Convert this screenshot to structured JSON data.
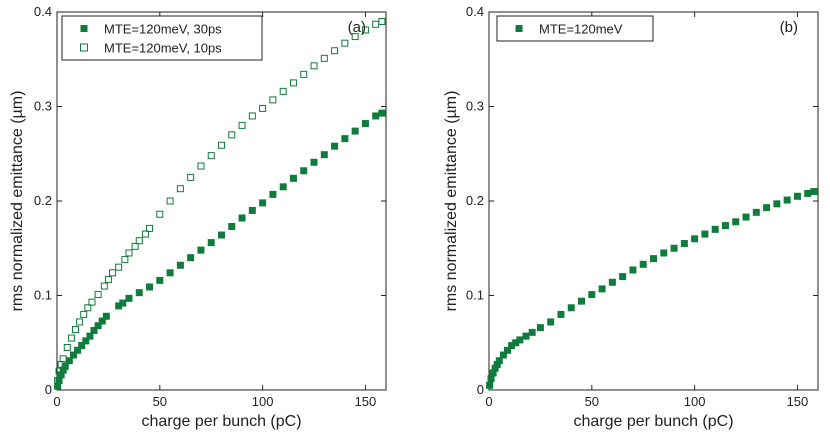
{
  "marker_color": "#0f7b3c",
  "chart_data": [
    {
      "type": "scatter",
      "panel_label": "(a)",
      "xlabel": "charge per bunch (pC)",
      "ylabel": "rms normalized emittance (µm)",
      "xlim": [
        0,
        160
      ],
      "ylim": [
        0,
        0.4
      ],
      "xticks": [
        0,
        50,
        100,
        150
      ],
      "yticks": [
        0,
        0.1,
        0.2,
        0.3,
        0.4
      ],
      "xtick_labels": [
        "0",
        "50",
        "100",
        "150"
      ],
      "ytick_labels": [
        "0",
        "0.1",
        "0.2",
        "0.3",
        "0.4"
      ],
      "legend_position": "top-left",
      "series": [
        {
          "name": "MTE=120meV, 30ps",
          "marker": "filled-square",
          "x": [
            0.3,
            1,
            2,
            3,
            4,
            6,
            8,
            10,
            12,
            14,
            16,
            18,
            20,
            22,
            24,
            30,
            32,
            35,
            40,
            45,
            50,
            55,
            60,
            65,
            70,
            75,
            80,
            85,
            90,
            95,
            100,
            105,
            110,
            115,
            120,
            125,
            130,
            135,
            140,
            145,
            150,
            155,
            158
          ],
          "y": [
            0.004,
            0.01,
            0.016,
            0.021,
            0.025,
            0.031,
            0.037,
            0.042,
            0.047,
            0.052,
            0.057,
            0.063,
            0.068,
            0.073,
            0.078,
            0.089,
            0.092,
            0.097,
            0.103,
            0.109,
            0.116,
            0.124,
            0.132,
            0.14,
            0.148,
            0.156,
            0.164,
            0.173,
            0.182,
            0.19,
            0.198,
            0.207,
            0.215,
            0.224,
            0.232,
            0.241,
            0.249,
            0.258,
            0.266,
            0.274,
            0.282,
            0.29,
            0.293
          ]
        },
        {
          "name": "MTE=120meV, 10ps",
          "marker": "open-square",
          "x": [
            0.3,
            1,
            2,
            3,
            5,
            7,
            9,
            11,
            13,
            15,
            17,
            20,
            23,
            25,
            27,
            30,
            33,
            35,
            38,
            40,
            43,
            45,
            50,
            55,
            60,
            65,
            70,
            75,
            80,
            85,
            90,
            95,
            100,
            105,
            110,
            115,
            120,
            125,
            130,
            135,
            140,
            145,
            150,
            155,
            158
          ],
          "y": [
            0.01,
            0.02,
            0.027,
            0.033,
            0.045,
            0.055,
            0.064,
            0.072,
            0.08,
            0.087,
            0.093,
            0.101,
            0.11,
            0.117,
            0.124,
            0.13,
            0.138,
            0.145,
            0.152,
            0.158,
            0.165,
            0.171,
            0.186,
            0.2,
            0.213,
            0.225,
            0.237,
            0.248,
            0.259,
            0.27,
            0.28,
            0.29,
            0.298,
            0.307,
            0.316,
            0.325,
            0.334,
            0.343,
            0.351,
            0.359,
            0.367,
            0.374,
            0.381,
            0.387,
            0.39
          ]
        }
      ]
    },
    {
      "type": "scatter",
      "panel_label": "(b)",
      "xlabel": "charge per bunch (pC)",
      "ylabel": "rms normalized emittance (µm)",
      "xlim": [
        0,
        160
      ],
      "ylim": [
        0,
        0.4
      ],
      "xticks": [
        0,
        50,
        100,
        150
      ],
      "yticks": [
        0,
        0.1,
        0.2,
        0.3,
        0.4
      ],
      "xtick_labels": [
        "0",
        "50",
        "100",
        "150"
      ],
      "ytick_labels": [
        "0",
        "0.1",
        "0.2",
        "0.3",
        "0.4"
      ],
      "legend_position": "top-left",
      "series": [
        {
          "name": "MTE=120meV",
          "marker": "filled-square",
          "x": [
            0.3,
            1,
            2,
            3,
            4,
            5,
            7,
            9,
            11,
            13,
            15,
            18,
            21,
            25,
            30,
            35,
            40,
            45,
            50,
            55,
            60,
            65,
            70,
            75,
            80,
            85,
            90,
            95,
            100,
            105,
            110,
            115,
            120,
            125,
            130,
            135,
            140,
            145,
            150,
            155,
            158
          ],
          "y": [
            0.005,
            0.012,
            0.018,
            0.023,
            0.027,
            0.031,
            0.037,
            0.042,
            0.047,
            0.05,
            0.053,
            0.057,
            0.061,
            0.066,
            0.072,
            0.08,
            0.087,
            0.094,
            0.101,
            0.107,
            0.114,
            0.12,
            0.127,
            0.133,
            0.139,
            0.145,
            0.15,
            0.155,
            0.16,
            0.165,
            0.17,
            0.174,
            0.178,
            0.183,
            0.188,
            0.193,
            0.197,
            0.201,
            0.205,
            0.208,
            0.21
          ]
        }
      ]
    }
  ]
}
